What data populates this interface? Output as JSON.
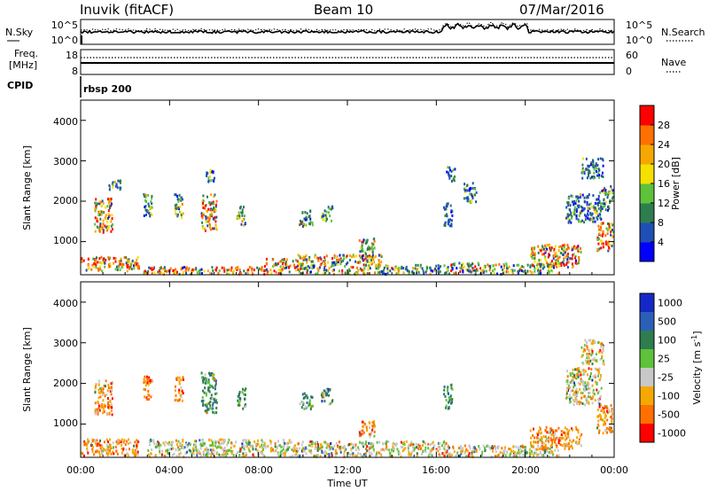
{
  "header": {
    "station": "Inuvik (fitACF)",
    "beam": "Beam 10",
    "date": "07/Mar/2016"
  },
  "top_panels": {
    "nsky": {
      "left_label": "N.Sky",
      "right_label": "N.Search",
      "left_ticks": [
        "10^5",
        "10^0"
      ],
      "right_ticks": [
        "10^5",
        "10^0"
      ]
    },
    "freq": {
      "left_label_1": "Freq.",
      "left_label_2": "[MHz]",
      "right_label": "Nave",
      "left_ticks": [
        "18",
        "8"
      ],
      "right_ticks": [
        "60",
        "0"
      ]
    },
    "cpid": {
      "label": "CPID",
      "program": "rbsp 200"
    }
  },
  "axes": {
    "x_label": "Time UT",
    "x_ticks": [
      "00:00",
      "04:00",
      "08:00",
      "12:00",
      "16:00",
      "20:00",
      "00:00"
    ],
    "y_label": "Slant Range [km]",
    "y_ticks": [
      "1000",
      "2000",
      "3000",
      "4000"
    ],
    "y_range_km": [
      180,
      4500
    ],
    "x_range_hours": [
      0,
      24
    ]
  },
  "colorbars": {
    "power": {
      "label": "Power [dB]",
      "ticks": [
        "4",
        "8",
        "12",
        "16",
        "20",
        "24",
        "28"
      ],
      "colors": [
        "#0000ff",
        "#1f4fb5",
        "#2f7d4f",
        "#5ec23a",
        "#f5e000",
        "#f5a800",
        "#ff7000",
        "#ff0000"
      ]
    },
    "velocity": {
      "label_main": "Velocity [m s",
      "label_sup": "-1",
      "label_end": "]",
      "ticks": [
        "1000",
        "500",
        "100",
        "25",
        "-25",
        "-100",
        "-500",
        "-1000"
      ],
      "colors": [
        "#1428c8",
        "#2c60b8",
        "#2f7d4f",
        "#5ec23a",
        "#c8c8c8",
        "#f5a800",
        "#ff7000",
        "#ff0000"
      ]
    }
  },
  "chart_data": {
    "type": "heatmap",
    "x_unit": "hours UT",
    "y_unit": "km",
    "power_clusters": [
      {
        "t": [
          0.0,
          2.6
        ],
        "r": [
          300,
          650
        ],
        "mix": "high"
      },
      {
        "t": [
          0.6,
          1.4
        ],
        "r": [
          1250,
          2100
        ],
        "mix": "high"
      },
      {
        "t": [
          1.2,
          1.8
        ],
        "r": [
          2300,
          2550
        ],
        "mix": "low"
      },
      {
        "t": [
          2.8,
          3.2
        ],
        "r": [
          1600,
          2200
        ],
        "mix": "mid"
      },
      {
        "t": [
          4.2,
          4.6
        ],
        "r": [
          1600,
          2200
        ],
        "mix": "mid"
      },
      {
        "t": [
          5.4,
          6.1
        ],
        "r": [
          1300,
          2200
        ],
        "mix": "high"
      },
      {
        "t": [
          5.6,
          6.0
        ],
        "r": [
          2500,
          2900
        ],
        "mix": "low"
      },
      {
        "t": [
          2.8,
          8.2
        ],
        "r": [
          180,
          400
        ],
        "mix": "high"
      },
      {
        "t": [
          8.2,
          9.4
        ],
        "r": [
          200,
          600
        ],
        "mix": "high"
      },
      {
        "t": [
          7.0,
          7.4
        ],
        "r": [
          1400,
          1900
        ],
        "mix": "mid"
      },
      {
        "t": [
          9.8,
          10.4
        ],
        "r": [
          1400,
          1800
        ],
        "mix": "mid"
      },
      {
        "t": [
          10.8,
          11.3
        ],
        "r": [
          1500,
          1900
        ],
        "mix": "mid"
      },
      {
        "t": [
          9.5,
          13.5
        ],
        "r": [
          200,
          700
        ],
        "mix": "mixed"
      },
      {
        "t": [
          12.5,
          13.2
        ],
        "r": [
          700,
          1100
        ],
        "mix": "mid"
      },
      {
        "t": [
          13.5,
          16.5
        ],
        "r": [
          200,
          450
        ],
        "mix": "mid"
      },
      {
        "t": [
          16.3,
          16.7
        ],
        "r": [
          1400,
          2000
        ],
        "mix": "low"
      },
      {
        "t": [
          16.4,
          16.8
        ],
        "r": [
          2500,
          2900
        ],
        "mix": "low"
      },
      {
        "t": [
          17.2,
          17.8
        ],
        "r": [
          2000,
          2500
        ],
        "mix": "low"
      },
      {
        "t": [
          16.5,
          21.5
        ],
        "r": [
          200,
          500
        ],
        "mix": "mixed"
      },
      {
        "t": [
          20.2,
          22.5
        ],
        "r": [
          400,
          950
        ],
        "mix": "high"
      },
      {
        "t": [
          21.8,
          23.4
        ],
        "r": [
          1500,
          2200
        ],
        "mix": "low"
      },
      {
        "t": [
          22.5,
          23.5
        ],
        "r": [
          2600,
          3100
        ],
        "mix": "low"
      },
      {
        "t": [
          23.2,
          24.0
        ],
        "r": [
          800,
          1500
        ],
        "mix": "high"
      },
      {
        "t": [
          23.3,
          24.0
        ],
        "r": [
          1800,
          2400
        ],
        "mix": "mid"
      }
    ],
    "velocity_clusters": [
      {
        "t": [
          0.0,
          2.6
        ],
        "r": [
          250,
          650
        ],
        "mix": "neg"
      },
      {
        "t": [
          0.6,
          1.4
        ],
        "r": [
          1250,
          2100
        ],
        "mix": "neg"
      },
      {
        "t": [
          2.8,
          3.2
        ],
        "r": [
          1600,
          2200
        ],
        "mix": "neg"
      },
      {
        "t": [
          4.2,
          4.6
        ],
        "r": [
          1600,
          2200
        ],
        "mix": "neg"
      },
      {
        "t": [
          5.4,
          6.1
        ],
        "r": [
          1300,
          2300
        ],
        "mix": "pos"
      },
      {
        "t": [
          3.0,
          9.5
        ],
        "r": [
          200,
          650
        ],
        "mix": "grey"
      },
      {
        "t": [
          7.0,
          7.4
        ],
        "r": [
          1400,
          1900
        ],
        "mix": "pos"
      },
      {
        "t": [
          9.8,
          10.4
        ],
        "r": [
          1400,
          1800
        ],
        "mix": "pos"
      },
      {
        "t": [
          10.8,
          11.3
        ],
        "r": [
          1500,
          1900
        ],
        "mix": "pos"
      },
      {
        "t": [
          9.5,
          16.5
        ],
        "r": [
          200,
          600
        ],
        "mix": "grey"
      },
      {
        "t": [
          12.5,
          13.2
        ],
        "r": [
          700,
          1100
        ],
        "mix": "neg"
      },
      {
        "t": [
          16.3,
          16.7
        ],
        "r": [
          1400,
          2000
        ],
        "mix": "pos"
      },
      {
        "t": [
          16.5,
          21.5
        ],
        "r": [
          200,
          500
        ],
        "mix": "grey"
      },
      {
        "t": [
          20.2,
          22.5
        ],
        "r": [
          400,
          950
        ],
        "mix": "neg"
      },
      {
        "t": [
          21.8,
          23.4
        ],
        "r": [
          1500,
          2400
        ],
        "mix": "grey"
      },
      {
        "t": [
          22.5,
          23.5
        ],
        "r": [
          2500,
          3100
        ],
        "mix": "grey"
      },
      {
        "t": [
          23.2,
          24.0
        ],
        "r": [
          800,
          1500
        ],
        "mix": "neg"
      }
    ]
  }
}
